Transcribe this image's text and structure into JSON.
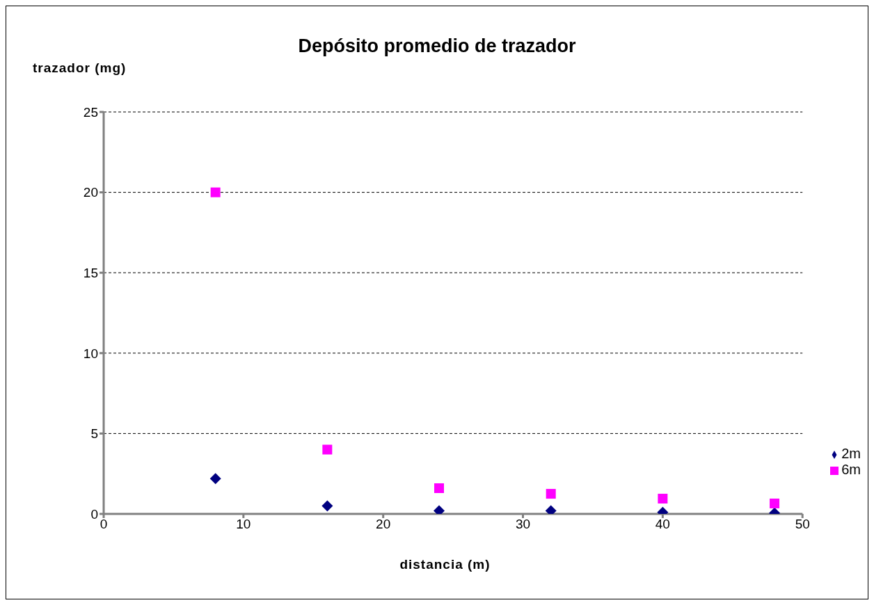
{
  "chart_data": {
    "type": "scatter",
    "title": "Depósito promedio de trazador",
    "xlabel": "distancia (m)",
    "ylabel": "trazador (mg)",
    "xlim": [
      0,
      50
    ],
    "xticks": [
      0,
      10,
      20,
      30,
      40,
      50
    ],
    "ylim": [
      0,
      25
    ],
    "yticks": [
      0,
      5,
      10,
      15,
      20,
      25
    ],
    "grid": "y",
    "legend": "right",
    "series": [
      {
        "name": "2m",
        "color": "#000080",
        "marker": "diamond",
        "x": [
          8,
          16,
          24,
          32,
          40,
          48
        ],
        "values": [
          2.2,
          0.5,
          0.2,
          0.2,
          0.1,
          0.05
        ]
      },
      {
        "name": "6m",
        "color": "#ff00ff",
        "marker": "square",
        "x": [
          8,
          16,
          24,
          32,
          40,
          48
        ],
        "values": [
          20,
          4,
          1.6,
          1.25,
          0.95,
          0.65
        ]
      }
    ]
  }
}
